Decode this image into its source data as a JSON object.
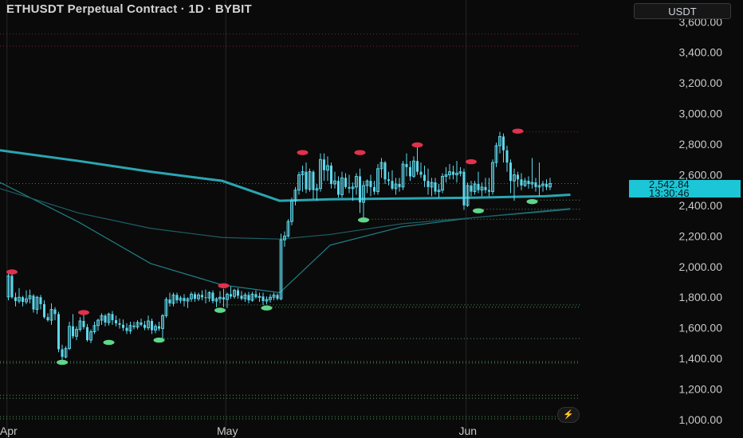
{
  "header": {
    "title": "ETHUSDT Perpetual Contract · 1D · BYBIT",
    "currency": "USDT"
  },
  "price_tag": {
    "price": "2,542.84",
    "countdown": "13:30:46"
  },
  "colors": {
    "background": "#0a0a0a",
    "candle": "#5ed8ec",
    "ma_slow": "#2aa6b2",
    "ma_mid": "#1f7f86",
    "ma_fast": "#1d5f66",
    "swing_high": "#e0314d",
    "swing_low": "#5fd68a",
    "level_red": "#8a2a3a",
    "level_green": "#5aa86a",
    "price_tag": "#1cc6d6"
  },
  "icons": {
    "flash": "lightning-icon"
  },
  "chart_data": {
    "type": "candlestick",
    "title": "ETHUSDT Perpetual Contract · 1D · BYBIT",
    "y_axis": {
      "ticks": [
        "3,600.00",
        "3,400.00",
        "3,200.00",
        "3,000.00",
        "2,800.00",
        "2,600.00",
        "2,400.00",
        "2,200.00",
        "2,000.00",
        "1,800.00",
        "1,600.00",
        "1,400.00",
        "1,200.00",
        "1,000.00"
      ],
      "tick_values": [
        3600,
        3400,
        3200,
        3000,
        2800,
        2600,
        2400,
        2200,
        2000,
        1800,
        1600,
        1400,
        1200,
        1000
      ],
      "ylim": [
        995,
        3650
      ]
    },
    "x_axis": {
      "labels": [
        "Apr",
        "May",
        "Jun"
      ],
      "label_positions_index": [
        -0.5,
        60.5,
        127.5
      ]
    },
    "candles_ohlc": [
      [
        1802,
        1960,
        1780,
        1940
      ],
      [
        1940,
        1980,
        1790,
        1800
      ],
      [
        1800,
        1830,
        1740,
        1775
      ],
      [
        1775,
        1860,
        1760,
        1800
      ],
      [
        1800,
        1810,
        1740,
        1770
      ],
      [
        1770,
        1845,
        1755,
        1790
      ],
      [
        1790,
        1850,
        1760,
        1810
      ],
      [
        1810,
        1820,
        1700,
        1720
      ],
      [
        1720,
        1810,
        1690,
        1800
      ],
      [
        1800,
        1815,
        1720,
        1755
      ],
      [
        1755,
        1780,
        1660,
        1670
      ],
      [
        1670,
        1695,
        1640,
        1650
      ],
      [
        1650,
        1760,
        1620,
        1720
      ],
      [
        1720,
        1735,
        1650,
        1690
      ],
      [
        1690,
        1705,
        1440,
        1460
      ],
      [
        1460,
        1490,
        1380,
        1410
      ],
      [
        1410,
        1480,
        1400,
        1465
      ],
      [
        1465,
        1640,
        1455,
        1610
      ],
      [
        1610,
        1690,
        1530,
        1545
      ],
      [
        1545,
        1610,
        1520,
        1590
      ],
      [
        1590,
        1670,
        1575,
        1645
      ],
      [
        1645,
        1695,
        1590,
        1605
      ],
      [
        1605,
        1625,
        1510,
        1520
      ],
      [
        1520,
        1590,
        1500,
        1575
      ],
      [
        1575,
        1640,
        1560,
        1615
      ],
      [
        1615,
        1660,
        1580,
        1650
      ],
      [
        1650,
        1695,
        1620,
        1680
      ],
      [
        1680,
        1690,
        1610,
        1635
      ],
      [
        1635,
        1700,
        1615,
        1690
      ],
      [
        1690,
        1710,
        1620,
        1650
      ],
      [
        1650,
        1680,
        1610,
        1630
      ],
      [
        1630,
        1660,
        1595,
        1620
      ],
      [
        1620,
        1655,
        1580,
        1600
      ],
      [
        1600,
        1630,
        1560,
        1580
      ],
      [
        1580,
        1640,
        1560,
        1615
      ],
      [
        1615,
        1640,
        1590,
        1605
      ],
      [
        1605,
        1650,
        1590,
        1635
      ],
      [
        1635,
        1660,
        1610,
        1620
      ],
      [
        1620,
        1645,
        1585,
        1600
      ],
      [
        1600,
        1680,
        1585,
        1645
      ],
      [
        1645,
        1660,
        1560,
        1585
      ],
      [
        1585,
        1625,
        1565,
        1610
      ],
      [
        1610,
        1640,
        1580,
        1595
      ],
      [
        1595,
        1690,
        1530,
        1680
      ],
      [
        1680,
        1800,
        1665,
        1785
      ],
      [
        1785,
        1830,
        1740,
        1760
      ],
      [
        1760,
        1830,
        1740,
        1815
      ],
      [
        1815,
        1830,
        1760,
        1780
      ],
      [
        1780,
        1810,
        1760,
        1795
      ],
      [
        1795,
        1820,
        1740,
        1775
      ],
      [
        1775,
        1800,
        1730,
        1790
      ],
      [
        1790,
        1835,
        1770,
        1820
      ],
      [
        1820,
        1835,
        1770,
        1790
      ],
      [
        1790,
        1830,
        1775,
        1815
      ],
      [
        1815,
        1845,
        1780,
        1800
      ],
      [
        1800,
        1850,
        1760,
        1795
      ],
      [
        1795,
        1840,
        1770,
        1830
      ],
      [
        1830,
        1845,
        1760,
        1775
      ],
      [
        1775,
        1800,
        1735,
        1790
      ],
      [
        1790,
        1840,
        1760,
        1800
      ],
      [
        1800,
        1855,
        1735,
        1785
      ],
      [
        1785,
        1830,
        1730,
        1820
      ],
      [
        1820,
        1870,
        1790,
        1805
      ],
      [
        1805,
        1855,
        1790,
        1845
      ],
      [
        1845,
        1860,
        1790,
        1810
      ],
      [
        1810,
        1840,
        1780,
        1790
      ],
      [
        1790,
        1830,
        1770,
        1815
      ],
      [
        1815,
        1835,
        1760,
        1780
      ],
      [
        1780,
        1835,
        1770,
        1820
      ],
      [
        1820,
        1845,
        1790,
        1800
      ],
      [
        1800,
        1830,
        1770,
        1805
      ],
      [
        1805,
        1830,
        1750,
        1775
      ],
      [
        1775,
        1805,
        1755,
        1785
      ],
      [
        1785,
        1820,
        1765,
        1800
      ],
      [
        1800,
        1830,
        1780,
        1815
      ],
      [
        1815,
        1825,
        1780,
        1790
      ],
      [
        1790,
        2215,
        1780,
        2175
      ],
      [
        2175,
        2230,
        2130,
        2200
      ],
      [
        2200,
        2310,
        2190,
        2295
      ],
      [
        2295,
        2450,
        2270,
        2430
      ],
      [
        2430,
        2520,
        2400,
        2500
      ],
      [
        2500,
        2620,
        2470,
        2600
      ],
      [
        2600,
        2660,
        2490,
        2620
      ],
      [
        2620,
        2680,
        2480,
        2505
      ],
      [
        2505,
        2640,
        2490,
        2620
      ],
      [
        2620,
        2630,
        2440,
        2500
      ],
      [
        2500,
        2540,
        2430,
        2510
      ],
      [
        2510,
        2740,
        2490,
        2700
      ],
      [
        2700,
        2740,
        2560,
        2630
      ],
      [
        2630,
        2720,
        2560,
        2660
      ],
      [
        2660,
        2680,
        2510,
        2540
      ],
      [
        2540,
        2620,
        2510,
        2560
      ],
      [
        2560,
        2590,
        2450,
        2470
      ],
      [
        2470,
        2620,
        2450,
        2580
      ],
      [
        2580,
        2610,
        2510,
        2520
      ],
      [
        2520,
        2600,
        2480,
        2510
      ],
      [
        2510,
        2550,
        2430,
        2520
      ],
      [
        2520,
        2610,
        2470,
        2590
      ],
      [
        2590,
        2640,
        2350,
        2420
      ],
      [
        2420,
        2560,
        2310,
        2530
      ],
      [
        2530,
        2570,
        2480,
        2560
      ],
      [
        2560,
        2600,
        2460,
        2520
      ],
      [
        2520,
        2560,
        2470,
        2490
      ],
      [
        2490,
        2670,
        2470,
        2640
      ],
      [
        2640,
        2710,
        2580,
        2680
      ],
      [
        2680,
        2690,
        2540,
        2570
      ],
      [
        2570,
        2620,
        2530,
        2560
      ],
      [
        2560,
        2630,
        2500,
        2510
      ],
      [
        2510,
        2580,
        2470,
        2540
      ],
      [
        2540,
        2580,
        2490,
        2520
      ],
      [
        2520,
        2690,
        2500,
        2670
      ],
      [
        2670,
        2740,
        2590,
        2650
      ],
      [
        2650,
        2690,
        2560,
        2590
      ],
      [
        2590,
        2720,
        2580,
        2690
      ],
      [
        2690,
        2790,
        2600,
        2620
      ],
      [
        2620,
        2680,
        2580,
        2600
      ],
      [
        2600,
        2660,
        2520,
        2560
      ],
      [
        2560,
        2640,
        2470,
        2520
      ],
      [
        2520,
        2580,
        2460,
        2550
      ],
      [
        2550,
        2580,
        2470,
        2490
      ],
      [
        2490,
        2540,
        2450,
        2500
      ],
      [
        2500,
        2610,
        2480,
        2590
      ],
      [
        2590,
        2650,
        2550,
        2600
      ],
      [
        2600,
        2670,
        2570,
        2620
      ],
      [
        2620,
        2660,
        2570,
        2600
      ],
      [
        2600,
        2690,
        2550,
        2610
      ],
      [
        2610,
        2650,
        2590,
        2620
      ],
      [
        2620,
        2640,
        2370,
        2400
      ],
      [
        2400,
        2550,
        2390,
        2530
      ],
      [
        2530,
        2560,
        2460,
        2490
      ],
      [
        2490,
        2560,
        2470,
        2540
      ],
      [
        2540,
        2620,
        2480,
        2500
      ],
      [
        2500,
        2550,
        2460,
        2520
      ],
      [
        2520,
        2580,
        2480,
        2500
      ],
      [
        2500,
        2580,
        2460,
        2490
      ],
      [
        2490,
        2700,
        2470,
        2680
      ],
      [
        2680,
        2810,
        2650,
        2790
      ],
      [
        2790,
        2880,
        2740,
        2850
      ],
      [
        2850,
        2870,
        2680,
        2760
      ],
      [
        2760,
        2790,
        2620,
        2680
      ],
      [
        2680,
        2700,
        2480,
        2560
      ],
      [
        2560,
        2640,
        2430,
        2600
      ],
      [
        2600,
        2620,
        2520,
        2570
      ],
      [
        2570,
        2610,
        2500,
        2530
      ],
      [
        2530,
        2580,
        2520,
        2560
      ],
      [
        2560,
        2590,
        2510,
        2540
      ],
      [
        2540,
        2710,
        2510,
        2550
      ],
      [
        2550,
        2580,
        2490,
        2520
      ],
      [
        2520,
        2680,
        2460,
        2530
      ],
      [
        2530,
        2560,
        2490,
        2540
      ],
      [
        2540,
        2570,
        2500,
        2520
      ],
      [
        2520,
        2580,
        2500,
        2542.84
      ]
    ],
    "series": [
      {
        "name": "",
        "values_sampled": [
          [
            -2,
            2760
          ],
          [
            20,
            2690
          ],
          [
            40,
            2620
          ],
          [
            60,
            2560
          ],
          [
            76,
            2430
          ],
          [
            90,
            2440
          ],
          [
            110,
            2445
          ],
          [
            130,
            2450
          ],
          [
            150,
            2460
          ],
          [
            157,
            2470
          ]
        ]
      },
      {
        "name": "",
        "values_sampled": [
          [
            -2,
            2550
          ],
          [
            20,
            2290
          ],
          [
            40,
            2020
          ],
          [
            60,
            1880
          ],
          [
            76,
            1830
          ],
          [
            90,
            2140
          ],
          [
            110,
            2260
          ],
          [
            130,
            2320
          ],
          [
            150,
            2360
          ],
          [
            157,
            2375
          ]
        ]
      },
      {
        "name": "",
        "values_sampled": [
          [
            -2,
            2510
          ],
          [
            20,
            2350
          ],
          [
            40,
            2250
          ],
          [
            60,
            2190
          ],
          [
            76,
            2180
          ],
          [
            90,
            2210
          ],
          [
            110,
            2280
          ],
          [
            130,
            2320
          ],
          [
            150,
            2365
          ],
          [
            157,
            2380
          ]
        ]
      }
    ],
    "swing_highs": [
      [
        1,
        1960
      ],
      [
        21,
        1695
      ],
      [
        60,
        1870
      ],
      [
        82,
        2740
      ],
      [
        98,
        2740
      ],
      [
        114,
        2790
      ],
      [
        129,
        2680
      ],
      [
        142,
        2880
      ]
    ],
    "swing_lows": [
      [
        15,
        1380
      ],
      [
        28,
        1510
      ],
      [
        42,
        1525
      ],
      [
        59,
        1720
      ],
      [
        72,
        1735
      ],
      [
        99,
        2310
      ],
      [
        131,
        2370
      ],
      [
        146,
        2430
      ]
    ],
    "levels": [
      {
        "value": 3520,
        "style": "red"
      },
      {
        "value": 3440,
        "style": "red"
      },
      {
        "value": 2880,
        "style": "red"
      },
      {
        "value": 2435,
        "style": "green"
      },
      {
        "value": 2375,
        "style": "green"
      },
      {
        "value": 2310,
        "style": "green"
      },
      {
        "value": 1750,
        "style": "green"
      },
      {
        "value": 1735,
        "style": "green"
      },
      {
        "value": 1530,
        "style": "green"
      },
      {
        "value": 1380,
        "style": "green"
      },
      {
        "value": 1370,
        "style": "green"
      },
      {
        "value": 1160,
        "style": "green"
      },
      {
        "value": 1140,
        "style": "green"
      },
      {
        "value": 1020,
        "style": "green"
      },
      {
        "value": 1005,
        "style": "green"
      },
      {
        "value": 2542.84,
        "style": "current"
      }
    ],
    "last_price": 2542.84,
    "grid": false
  }
}
